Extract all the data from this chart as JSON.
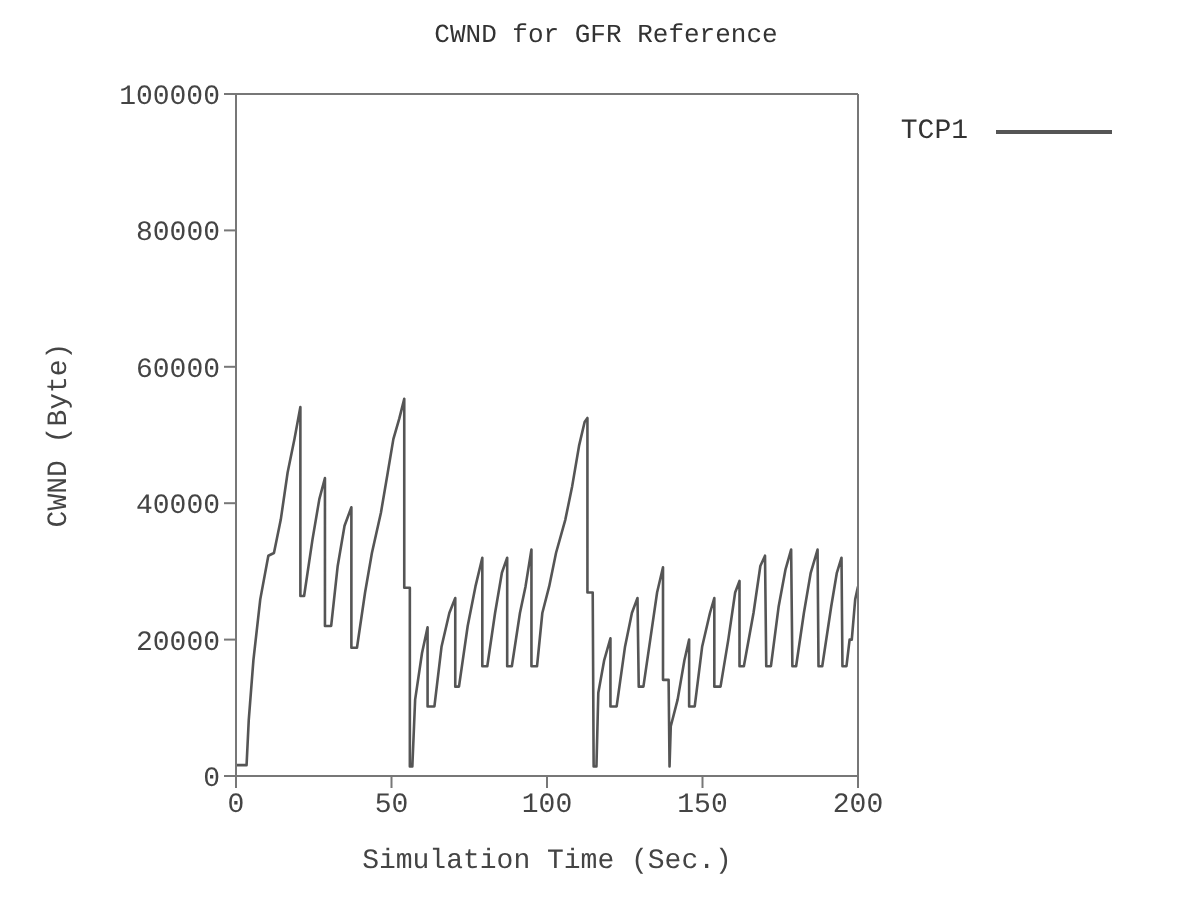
{
  "chart_data": {
    "type": "line",
    "title": "CWND for GFR Reference",
    "xlabel": "Simulation Time (Sec.)",
    "ylabel": "CWND (Byte)",
    "xlim": [
      0,
      200
    ],
    "xticks": [
      0,
      50,
      100,
      150,
      200
    ],
    "ylim": [
      0,
      100000
    ],
    "yticks": [
      0,
      20000,
      40000,
      60000,
      80000,
      100000
    ],
    "legend": "top right",
    "marker": "none",
    "line_style": "solid",
    "series": [
      {
        "name": "TCP1",
        "color": "#555555",
        "x": [
          0,
          3.4,
          4.1,
          5.6,
          7.8,
          10.4,
          12.2,
          14.4,
          16.6,
          18.8,
          20.7,
          20.7,
          21.9,
          24.6,
          26.8,
          28.6,
          28.6,
          30.6,
          32.7,
          34.9,
          37.1,
          37.1,
          38.9,
          41.5,
          43.7,
          46.6,
          48.8,
          50.6,
          52.5,
          54.1,
          54.1,
          55.9,
          55.9,
          56.7,
          57.6,
          59.8,
          61.6,
          61.6,
          63.8,
          66.1,
          68.6,
          70.5,
          70.5,
          71.7,
          74.5,
          77,
          79.2,
          79.2,
          80.8,
          83.3,
          85.5,
          87.2,
          87.2,
          88.7,
          91.3,
          93.1,
          95,
          95,
          96.8,
          98.5,
          100.7,
          102.9,
          105.9,
          108.1,
          110.3,
          112.1,
          113,
          113,
          114.7,
          115,
          115.9,
          116.5,
          118.4,
          120.4,
          120.4,
          122.4,
          125.1,
          127.3,
          129.1,
          129.5,
          131,
          133.2,
          135.4,
          137.3,
          137.3,
          139.1,
          139.4,
          139.8,
          142,
          144.2,
          145.7,
          145.7,
          147.5,
          149.9,
          152.4,
          153.8,
          153.8,
          155.8,
          158.3,
          160.5,
          161.9,
          161.9,
          163.3,
          166.4,
          168.6,
          170.1,
          170.5,
          172,
          174.5,
          176.7,
          178.5,
          178.9,
          180.1,
          182.6,
          184.8,
          187,
          187.3,
          188.5,
          191.4,
          193.2,
          194.7,
          195,
          196.3,
          197.3,
          198,
          199.1,
          200
        ],
        "values": [
          1600,
          1600,
          8200,
          17000,
          25900,
          32300,
          32700,
          37600,
          44500,
          49400,
          54100,
          26400,
          26400,
          34700,
          40600,
          43700,
          22000,
          22000,
          30800,
          36700,
          39400,
          18800,
          18800,
          26900,
          32700,
          38600,
          44500,
          49400,
          52400,
          55300,
          27600,
          27600,
          1400,
          1400,
          11200,
          18000,
          21800,
          10200,
          10200,
          19000,
          23900,
          26100,
          13100,
          13100,
          22000,
          27800,
          32000,
          16100,
          16100,
          23900,
          29800,
          32000,
          16100,
          16100,
          23900,
          27800,
          33200,
          16100,
          16100,
          23900,
          27800,
          32700,
          37600,
          42500,
          48400,
          51900,
          52500,
          26900,
          26900,
          1400,
          1400,
          12200,
          17000,
          20200,
          10200,
          10200,
          19000,
          23900,
          26100,
          13100,
          13100,
          20000,
          26900,
          30600,
          14100,
          14100,
          1400,
          7300,
          11200,
          17000,
          20000,
          10200,
          10200,
          19000,
          23900,
          26100,
          13100,
          13100,
          20000,
          26900,
          28600,
          16100,
          16100,
          23900,
          30800,
          32300,
          16100,
          16100,
          24900,
          30300,
          33200,
          16100,
          16100,
          23900,
          29800,
          33200,
          16100,
          16100,
          24900,
          29800,
          32000,
          16100,
          16100,
          20000,
          20000,
          25900,
          27800
        ]
      }
    ]
  }
}
